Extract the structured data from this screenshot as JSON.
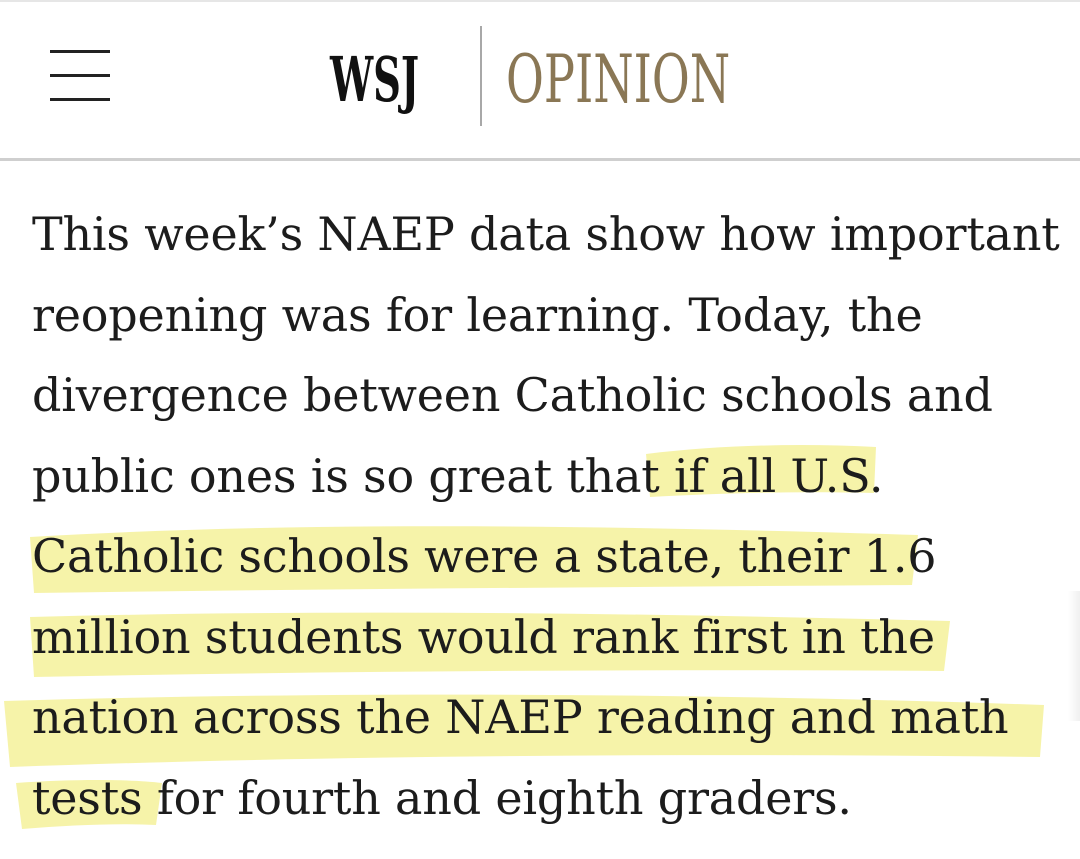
{
  "header": {
    "menu_icon": "hamburger-menu-icon",
    "brand": "WSJ",
    "section": "OPINION",
    "brand_color": "#111111",
    "section_color": "#8a7755"
  },
  "article": {
    "lines": [
      {
        "plain": "This week’s NAEP data show how important",
        "highlighted": ""
      },
      {
        "plain": "reopening was for learning. Today, the",
        "highlighted": ""
      },
      {
        "plain": "divergence between Catholic schools and",
        "highlighted": ""
      },
      {
        "plain": "public ones is so great that ",
        "highlighted": "if all U.S."
      },
      {
        "plain": "",
        "highlighted": "Catholic schools were a state, their 1.6"
      },
      {
        "plain": "",
        "highlighted": "million students would rank first in the"
      },
      {
        "plain": "",
        "highlighted": "nation across the NAEP reading and math"
      },
      {
        "plain": "for fourth and eighth graders.",
        "highlighted": "tests "
      }
    ],
    "text_color": "#1c1c1c",
    "highlight_color": "#f4f19a"
  }
}
